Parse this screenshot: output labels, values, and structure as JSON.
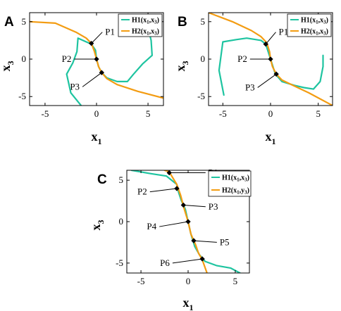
{
  "figure": {
    "colors": {
      "h1": "#1ec4a0",
      "h2": "#f39c12",
      "marker": "#000000"
    }
  },
  "chart_data": [
    {
      "type": "line",
      "panel": "A",
      "xlabel": "x",
      "xlabel_sub": "1",
      "ylabel": "x",
      "ylabel_sub": "3",
      "xlim": [
        -6.5,
        6.5
      ],
      "ylim": [
        -6.2,
        6.2
      ],
      "xticks": [
        -5,
        0,
        5
      ],
      "yticks": [
        -5,
        0,
        5
      ],
      "legend": [
        {
          "name": "H1",
          "args": [
            "(x",
            "1",
            ",x",
            "3",
            ")"
          ]
        },
        {
          "name": "H2",
          "args": [
            "(x",
            "1",
            ",x",
            "3",
            ")"
          ]
        }
      ],
      "series": [
        {
          "name": "H1(x1,x3)",
          "color": "#1ec4a0",
          "x": [
            -1.5,
            -2.5,
            -2.9,
            -2.3,
            -1.9,
            -1.8,
            -1.0,
            -0.5,
            -0.1,
            0.0,
            0.2,
            0.5,
            1.0,
            2.0,
            3.0,
            3.6,
            4.5,
            5.4,
            5.3,
            4.9
          ],
          "y": [
            -6.2,
            -4.5,
            -2.0,
            -0.5,
            1.0,
            2.8,
            2.3,
            2.0,
            1.2,
            0.0,
            -1.0,
            -1.8,
            -2.5,
            -3.0,
            -3.0,
            -2.0,
            -0.6,
            0.5,
            2.5,
            4.8
          ]
        },
        {
          "name": "H2(x1,x3)",
          "color": "#f39c12",
          "x": [
            -6.5,
            -4.0,
            -2.0,
            -1.0,
            -0.5,
            -0.2,
            0.0,
            0.2,
            0.5,
            1.0,
            2.0,
            4.0,
            6.5
          ],
          "y": [
            5.0,
            4.8,
            3.6,
            2.8,
            2.1,
            1.0,
            0.0,
            -1.0,
            -1.8,
            -2.6,
            -3.4,
            -4.3,
            -5.2
          ]
        }
      ],
      "points": [
        {
          "label": "P1",
          "x": -0.5,
          "y": 2.1,
          "lx": 0.7,
          "ly": 3.6
        },
        {
          "label": "P2",
          "x": 0.0,
          "y": 0.0,
          "lx": -2.3,
          "ly": 0.0
        },
        {
          "label": "P3",
          "x": 0.5,
          "y": -1.8,
          "lx": -1.5,
          "ly": -3.7
        }
      ]
    },
    {
      "type": "line",
      "panel": "B",
      "xlabel": "x",
      "xlabel_sub": "1",
      "ylabel": "x",
      "ylabel_sub": "3",
      "xlim": [
        -6.5,
        6.5
      ],
      "ylim": [
        -6.2,
        6.2
      ],
      "xticks": [
        -5,
        0,
        5
      ],
      "yticks": [
        -5,
        0,
        5
      ],
      "legend": [
        {
          "name": "H1",
          "args": [
            "(x",
            "1",
            ",x",
            "3",
            ")"
          ]
        },
        {
          "name": "H2",
          "args": [
            "(x",
            "1",
            ",x",
            "3",
            ")"
          ]
        }
      ],
      "series": [
        {
          "name": "H1(x1,x3)",
          "color": "#1ec4a0",
          "x": [
            -4.9,
            -5.4,
            -5.0,
            -3.6,
            -2.5,
            -1.0,
            -0.5,
            0.0,
            0.3,
            0.5,
            1.2,
            2.5,
            3.5,
            4.5,
            5.2,
            5.5,
            5.5
          ],
          "y": [
            -4.8,
            -1.5,
            2.3,
            2.6,
            2.8,
            2.5,
            2.0,
            0.0,
            -1.2,
            -2.0,
            -3.0,
            -3.5,
            -3.8,
            -4.0,
            -3.0,
            -1.0,
            0.5
          ]
        },
        {
          "name": "H2(x1,x3)",
          "color": "#f39c12",
          "x": [
            -6.5,
            -4.0,
            -2.0,
            -1.0,
            -0.4,
            -0.1,
            0.0,
            0.2,
            0.6,
            1.2,
            2.5,
            4.0,
            6.5
          ],
          "y": [
            6.2,
            5.0,
            3.8,
            3.0,
            2.2,
            1.0,
            0.0,
            -1.0,
            -2.0,
            -2.8,
            -3.6,
            -4.5,
            -6.2
          ]
        }
      ],
      "points": [
        {
          "label": "P1",
          "x": -0.5,
          "y": 2.0,
          "lx": 0.7,
          "ly": 3.6
        },
        {
          "label": "P2",
          "x": 0.0,
          "y": 0.0,
          "lx": -2.3,
          "ly": 0.0
        },
        {
          "label": "P3",
          "x": 0.6,
          "y": -2.0,
          "lx": -1.5,
          "ly": -3.8
        }
      ]
    },
    {
      "type": "line",
      "panel": "C",
      "xlabel": "x",
      "xlabel_sub": "1",
      "ylabel": "x",
      "ylabel_sub": "3",
      "xlim": [
        -6.5,
        6.5
      ],
      "ylim": [
        -6.2,
        6.2
      ],
      "xticks": [
        -5,
        0,
        5
      ],
      "yticks": [
        -5,
        0,
        5
      ],
      "legend": [
        {
          "name": "H1",
          "args": [
            "(x",
            "1",
            ",x",
            "3",
            ")"
          ]
        },
        {
          "name": "H2",
          "args": [
            "(x",
            "1",
            ",y",
            "3",
            ")"
          ]
        }
      ],
      "series": [
        {
          "name": "H1(x1,x3)",
          "color": "#1ec4a0",
          "x": [
            -6.0,
            -4.0,
            -2.3,
            -1.2,
            -1.0,
            -0.7,
            -0.3,
            0.0,
            0.3,
            0.7,
            1.2,
            1.8,
            3.0,
            4.5,
            5.5
          ],
          "y": [
            6.2,
            5.8,
            5.5,
            4.5,
            3.5,
            2.5,
            1.5,
            0.0,
            -1.5,
            -3.0,
            -4.0,
            -4.8,
            -5.3,
            -5.6,
            -6.2
          ]
        },
        {
          "name": "H2(x1,y3)",
          "color": "#f39c12",
          "x": [
            -2.5,
            -2.0,
            -1.2,
            -0.8,
            -0.4,
            0.0,
            0.3,
            0.8,
            1.1,
            1.5,
            2.0
          ],
          "y": [
            6.2,
            6.0,
            4.5,
            3.2,
            1.5,
            0.0,
            -1.5,
            -2.8,
            -3.8,
            -4.6,
            -6.2
          ]
        }
      ],
      "points": [
        {
          "label": "P1",
          "x": -2.0,
          "y": 5.9,
          "lx": 2.0,
          "ly": 5.9
        },
        {
          "label": "P2",
          "x": -1.2,
          "y": 4.0,
          "lx": -4.2,
          "ly": 3.6
        },
        {
          "label": "P3",
          "x": -0.5,
          "y": 2.0,
          "lx": 2.0,
          "ly": 1.8
        },
        {
          "label": "P4",
          "x": 0.0,
          "y": 0.0,
          "lx": -3.2,
          "ly": -0.6
        },
        {
          "label": "P5",
          "x": 0.6,
          "y": -2.3,
          "lx": 3.2,
          "ly": -2.5
        },
        {
          "label": "P6",
          "x": 1.5,
          "y": -4.5,
          "lx": -1.8,
          "ly": -5.0
        }
      ]
    }
  ]
}
